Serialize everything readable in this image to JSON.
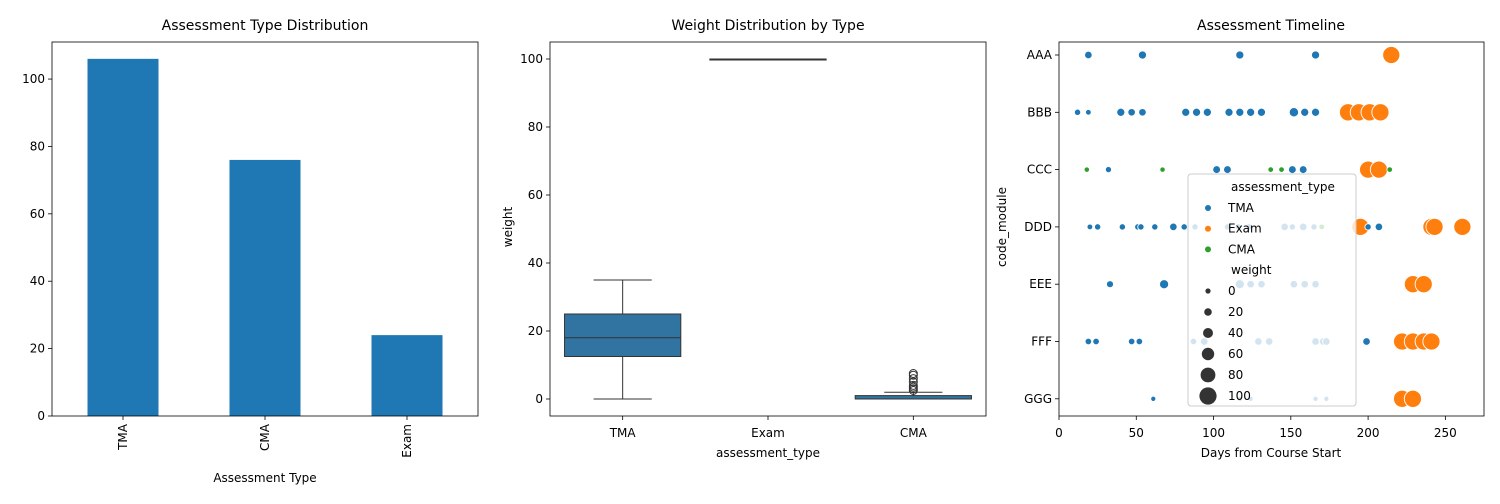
{
  "colors": {
    "bar": "#1f77b4",
    "box": "#3274a1",
    "TMA": "#1f77b4",
    "Exam": "#ff7f0e",
    "CMA": "#2ca02c"
  },
  "chart_data": [
    {
      "type": "bar",
      "title": "Assessment Type Distribution",
      "xlabel": "Assessment Type",
      "ylabel": "",
      "categories": [
        "TMA",
        "CMA",
        "Exam"
      ],
      "values": [
        106,
        76,
        24
      ],
      "ylim": [
        0,
        111
      ],
      "yticks": [
        0,
        20,
        40,
        60,
        80,
        100
      ],
      "grid": false
    },
    {
      "type": "box",
      "title": "Weight Distribution by Type",
      "xlabel": "assessment_type",
      "ylabel": "weight",
      "categories": [
        "TMA",
        "Exam",
        "CMA"
      ],
      "boxes": [
        {
          "category": "TMA",
          "whisker_low": 0,
          "q1": 12.5,
          "median": 18,
          "q3": 25,
          "whisker_high": 35,
          "outliers": []
        },
        {
          "category": "Exam",
          "whisker_low": 100,
          "q1": 100,
          "median": 100,
          "q3": 100,
          "whisker_high": 100,
          "outliers": []
        },
        {
          "category": "CMA",
          "whisker_low": 0,
          "q1": 0,
          "median": 0,
          "q3": 1,
          "whisker_high": 2,
          "outliers": [
            2.5,
            3,
            3.5,
            4,
            5,
            6,
            7,
            7.5
          ]
        }
      ],
      "ylim": [
        -5,
        105
      ],
      "yticks": [
        0,
        20,
        40,
        60,
        80,
        100
      ],
      "grid": false
    },
    {
      "type": "scatter",
      "title": "Assessment Timeline",
      "xlabel": "Days from Course Start",
      "ylabel": "code_module",
      "categories": [
        "AAA",
        "BBB",
        "CCC",
        "DDD",
        "EEE",
        "FFF",
        "GGG"
      ],
      "xlim": [
        0,
        275
      ],
      "xticks": [
        0,
        50,
        100,
        150,
        200,
        250
      ],
      "legend": {
        "position": "center-right",
        "hue_title": "assessment_type",
        "hue_entries": [
          "TMA",
          "Exam",
          "CMA"
        ],
        "size_title": "weight",
        "size_entries": [
          0,
          20,
          40,
          60,
          80,
          100
        ]
      },
      "points": [
        {
          "x": 19,
          "y": "AAA",
          "type": "TMA",
          "weight": 20
        },
        {
          "x": 54,
          "y": "AAA",
          "type": "TMA",
          "weight": 25
        },
        {
          "x": 117,
          "y": "AAA",
          "type": "TMA",
          "weight": 25
        },
        {
          "x": 166,
          "y": "AAA",
          "type": "TMA",
          "weight": 25
        },
        {
          "x": 215,
          "y": "AAA",
          "type": "Exam",
          "weight": 100
        },
        {
          "x": 12,
          "y": "BBB",
          "type": "TMA",
          "weight": 10
        },
        {
          "x": 19,
          "y": "BBB",
          "type": "TMA",
          "weight": 5
        },
        {
          "x": 40,
          "y": "BBB",
          "type": "TMA",
          "weight": 25
        },
        {
          "x": 47,
          "y": "BBB",
          "type": "CMA",
          "weight": 5
        },
        {
          "x": 47,
          "y": "BBB",
          "type": "TMA",
          "weight": 20
        },
        {
          "x": 54,
          "y": "BBB",
          "type": "TMA",
          "weight": 20
        },
        {
          "x": 82,
          "y": "BBB",
          "type": "TMA",
          "weight": 25
        },
        {
          "x": 89,
          "y": "BBB",
          "type": "TMA",
          "weight": 25
        },
        {
          "x": 96,
          "y": "BBB",
          "type": "TMA",
          "weight": 25
        },
        {
          "x": 110,
          "y": "BBB",
          "type": "TMA",
          "weight": 25
        },
        {
          "x": 117,
          "y": "BBB",
          "type": "TMA",
          "weight": 25
        },
        {
          "x": 124,
          "y": "BBB",
          "type": "TMA",
          "weight": 25
        },
        {
          "x": 131,
          "y": "BBB",
          "type": "TMA",
          "weight": 25
        },
        {
          "x": 152,
          "y": "BBB",
          "type": "TMA",
          "weight": 35
        },
        {
          "x": 159,
          "y": "BBB",
          "type": "TMA",
          "weight": 25
        },
        {
          "x": 166,
          "y": "BBB",
          "type": "TMA",
          "weight": 25
        },
        {
          "x": 187,
          "y": "BBB",
          "type": "Exam",
          "weight": 100
        },
        {
          "x": 194,
          "y": "BBB",
          "type": "Exam",
          "weight": 100
        },
        {
          "x": 201,
          "y": "BBB",
          "type": "Exam",
          "weight": 100
        },
        {
          "x": 208,
          "y": "BBB",
          "type": "Exam",
          "weight": 100
        },
        {
          "x": 18,
          "y": "CCC",
          "type": "CMA",
          "weight": 2
        },
        {
          "x": 32,
          "y": "CCC",
          "type": "TMA",
          "weight": 9
        },
        {
          "x": 67,
          "y": "CCC",
          "type": "CMA",
          "weight": 2
        },
        {
          "x": 102,
          "y": "CCC",
          "type": "TMA",
          "weight": 22
        },
        {
          "x": 109,
          "y": "CCC",
          "type": "TMA",
          "weight": 22
        },
        {
          "x": 137,
          "y": "CCC",
          "type": "CMA",
          "weight": 4
        },
        {
          "x": 144,
          "y": "CCC",
          "type": "CMA",
          "weight": 4
        },
        {
          "x": 151,
          "y": "CCC",
          "type": "TMA",
          "weight": 22
        },
        {
          "x": 158,
          "y": "CCC",
          "type": "TMA",
          "weight": 22
        },
        {
          "x": 200,
          "y": "CCC",
          "type": "Exam",
          "weight": 100
        },
        {
          "x": 207,
          "y": "CCC",
          "type": "Exam",
          "weight": 100
        },
        {
          "x": 214,
          "y": "CCC",
          "type": "CMA",
          "weight": 4
        },
        {
          "x": 20,
          "y": "DDD",
          "type": "TMA",
          "weight": 5
        },
        {
          "x": 25,
          "y": "DDD",
          "type": "TMA",
          "weight": 10
        },
        {
          "x": 41,
          "y": "DDD",
          "type": "TMA",
          "weight": 10
        },
        {
          "x": 51,
          "y": "DDD",
          "type": "TMA",
          "weight": 10
        },
        {
          "x": 53,
          "y": "DDD",
          "type": "TMA",
          "weight": 10
        },
        {
          "x": 62,
          "y": "DDD",
          "type": "TMA",
          "weight": 10
        },
        {
          "x": 74,
          "y": "DDD",
          "type": "TMA",
          "weight": 20
        },
        {
          "x": 81,
          "y": "DDD",
          "type": "TMA",
          "weight": 10
        },
        {
          "x": 88,
          "y": "DDD",
          "type": "TMA",
          "weight": 10
        },
        {
          "x": 109,
          "y": "DDD",
          "type": "TMA",
          "weight": 10
        },
        {
          "x": 116,
          "y": "DDD",
          "type": "TMA",
          "weight": 10
        },
        {
          "x": 123,
          "y": "DDD",
          "type": "TMA",
          "weight": 10
        },
        {
          "x": 146,
          "y": "DDD",
          "type": "TMA",
          "weight": 20
        },
        {
          "x": 151,
          "y": "DDD",
          "type": "TMA",
          "weight": 10
        },
        {
          "x": 158,
          "y": "DDD",
          "type": "TMA",
          "weight": 20
        },
        {
          "x": 165,
          "y": "DDD",
          "type": "TMA",
          "weight": 10
        },
        {
          "x": 170,
          "y": "DDD",
          "type": "CMA",
          "weight": 5
        },
        {
          "x": 195,
          "y": "DDD",
          "type": "Exam",
          "weight": 100
        },
        {
          "x": 200,
          "y": "DDD",
          "type": "TMA",
          "weight": 10
        },
        {
          "x": 207,
          "y": "DDD",
          "type": "TMA",
          "weight": 20
        },
        {
          "x": 241,
          "y": "DDD",
          "type": "Exam",
          "weight": 100
        },
        {
          "x": 243,
          "y": "DDD",
          "type": "Exam",
          "weight": 100
        },
        {
          "x": 261,
          "y": "DDD",
          "type": "Exam",
          "weight": 100
        },
        {
          "x": 33,
          "y": "EEE",
          "type": "TMA",
          "weight": 16
        },
        {
          "x": 68,
          "y": "EEE",
          "type": "TMA",
          "weight": 33
        },
        {
          "x": 117,
          "y": "EEE",
          "type": "TMA",
          "weight": 33
        },
        {
          "x": 124,
          "y": "EEE",
          "type": "TMA",
          "weight": 20
        },
        {
          "x": 131,
          "y": "EEE",
          "type": "TMA",
          "weight": 20
        },
        {
          "x": 152,
          "y": "EEE",
          "type": "TMA",
          "weight": 20
        },
        {
          "x": 159,
          "y": "EEE",
          "type": "TMA",
          "weight": 20
        },
        {
          "x": 166,
          "y": "EEE",
          "type": "TMA",
          "weight": 20
        },
        {
          "x": 229,
          "y": "EEE",
          "type": "Exam",
          "weight": 100
        },
        {
          "x": 236,
          "y": "EEE",
          "type": "Exam",
          "weight": 100
        },
        {
          "x": 19,
          "y": "FFF",
          "type": "TMA",
          "weight": 12
        },
        {
          "x": 24,
          "y": "FFF",
          "type": "TMA",
          "weight": 12
        },
        {
          "x": 47,
          "y": "FFF",
          "type": "TMA",
          "weight": 12
        },
        {
          "x": 52,
          "y": "FFF",
          "type": "TMA",
          "weight": 12
        },
        {
          "x": 87,
          "y": "FFF",
          "type": "TMA",
          "weight": 12
        },
        {
          "x": 94,
          "y": "FFF",
          "type": "TMA",
          "weight": 20
        },
        {
          "x": 129,
          "y": "FFF",
          "type": "TMA",
          "weight": 20
        },
        {
          "x": 136,
          "y": "FFF",
          "type": "TMA",
          "weight": 20
        },
        {
          "x": 166,
          "y": "FFF",
          "type": "TMA",
          "weight": 20
        },
        {
          "x": 171,
          "y": "FFF",
          "type": "TMA",
          "weight": 20
        },
        {
          "x": 173,
          "y": "FFF",
          "type": "TMA",
          "weight": 20
        },
        {
          "x": 199,
          "y": "FFF",
          "type": "TMA",
          "weight": 20
        },
        {
          "x": 222,
          "y": "FFF",
          "type": "Exam",
          "weight": 100
        },
        {
          "x": 229,
          "y": "FFF",
          "type": "Exam",
          "weight": 100
        },
        {
          "x": 236,
          "y": "FFF",
          "type": "Exam",
          "weight": 100
        },
        {
          "x": 241,
          "y": "FFF",
          "type": "Exam",
          "weight": 100
        },
        {
          "x": 61,
          "y": "GGG",
          "type": "TMA",
          "weight": 0
        },
        {
          "x": 117,
          "y": "GGG",
          "type": "TMA",
          "weight": 0
        },
        {
          "x": 124,
          "y": "GGG",
          "type": "TMA",
          "weight": 0
        },
        {
          "x": 166,
          "y": "GGG",
          "type": "TMA",
          "weight": 0
        },
        {
          "x": 173,
          "y": "GGG",
          "type": "TMA",
          "weight": 0
        },
        {
          "x": 222,
          "y": "GGG",
          "type": "Exam",
          "weight": 100
        },
        {
          "x": 229,
          "y": "GGG",
          "type": "Exam",
          "weight": 100
        }
      ]
    }
  ]
}
